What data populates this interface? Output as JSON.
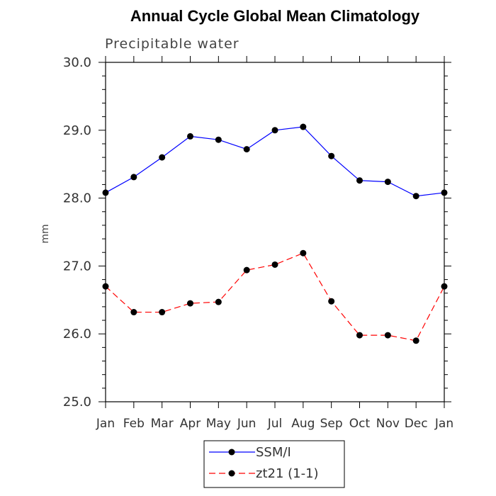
{
  "chart_data": {
    "type": "line",
    "title": "Annual Cycle Global Mean Climatology",
    "subtitle": "Precipitable water",
    "ylabel": "mm",
    "xlabel": "",
    "ylim": [
      25.0,
      30.0
    ],
    "yticks": [
      "25.0",
      "26.0",
      "27.0",
      "28.0",
      "29.0",
      "30.0"
    ],
    "yticks_values": [
      25.0,
      26.0,
      27.0,
      28.0,
      29.0,
      30.0
    ],
    "categories": [
      "Jan",
      "Feb",
      "Mar",
      "Apr",
      "May",
      "Jun",
      "Jul",
      "Aug",
      "Sep",
      "Oct",
      "Nov",
      "Dec",
      "Jan"
    ],
    "grid": false,
    "legend_position": "bottom-center",
    "series": [
      {
        "name": "SSM/I",
        "color": "#0000ff",
        "dash": "solid",
        "values": [
          28.08,
          28.31,
          28.6,
          28.91,
          28.86,
          28.72,
          29.0,
          29.05,
          28.62,
          28.26,
          28.24,
          28.03,
          28.08
        ]
      },
      {
        "name": "zt21 (1-1)",
        "color": "#ff0000",
        "dash": "dashed",
        "values": [
          26.7,
          26.32,
          26.32,
          26.45,
          26.47,
          26.94,
          27.02,
          27.19,
          26.48,
          25.98,
          25.98,
          25.9,
          26.7
        ]
      }
    ]
  }
}
